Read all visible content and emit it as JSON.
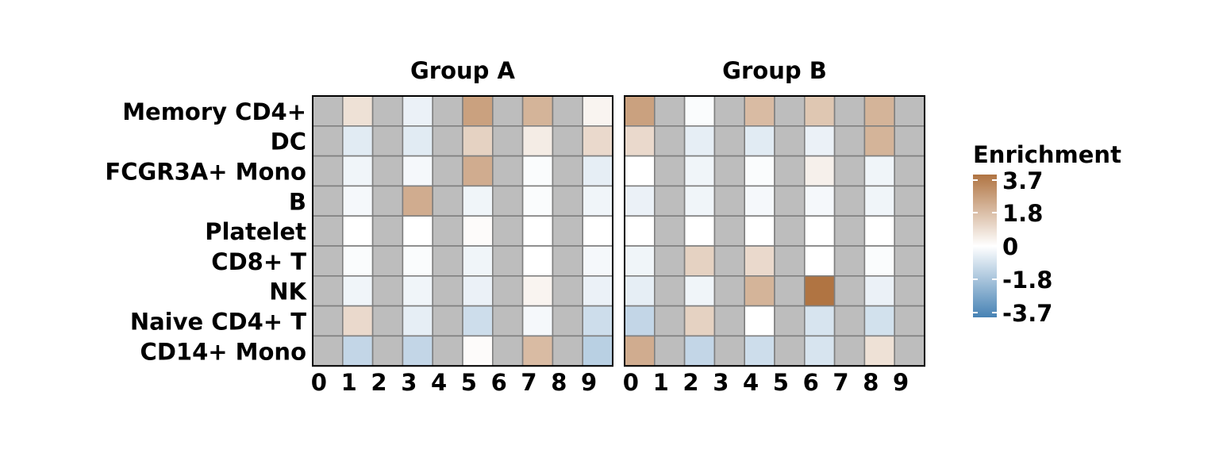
{
  "chart_data": {
    "type": "heatmap",
    "title": "",
    "xlabel": "",
    "ylabel": "",
    "rows": [
      "Memory CD4+",
      "DC",
      "FCGR3A+ Mono",
      "B",
      "Platelet",
      "CD8+ T",
      "NK",
      "Naive CD4+ T",
      "CD14+ Mono"
    ],
    "columns": [
      "0",
      "1",
      "2",
      "3",
      "4",
      "5",
      "6",
      "7",
      "8",
      "9"
    ],
    "panels": [
      {
        "name": "Group A",
        "values": [
          [
            null,
            0.8,
            null,
            -0.4,
            null,
            2.5,
            null,
            2.0,
            null,
            0.3
          ],
          [
            null,
            -0.6,
            null,
            -0.6,
            null,
            1.2,
            null,
            0.5,
            null,
            1.0
          ],
          [
            null,
            -0.3,
            null,
            -0.2,
            null,
            2.2,
            null,
            -0.1,
            null,
            -0.5
          ],
          [
            null,
            -0.2,
            null,
            2.2,
            null,
            -0.3,
            null,
            -0.1,
            null,
            -0.3
          ],
          [
            null,
            0.0,
            null,
            0.0,
            null,
            0.1,
            null,
            0.0,
            null,
            0.0
          ],
          [
            null,
            -0.1,
            null,
            -0.1,
            null,
            -0.3,
            null,
            0.0,
            null,
            -0.2
          ],
          [
            null,
            -0.3,
            null,
            -0.3,
            null,
            -0.4,
            null,
            0.3,
            null,
            -0.4
          ],
          [
            null,
            1.0,
            null,
            -0.5,
            null,
            -1.0,
            null,
            -0.2,
            null,
            -1.0
          ],
          [
            null,
            -1.2,
            null,
            -1.2,
            null,
            0.1,
            null,
            1.8,
            null,
            -1.4
          ]
        ]
      },
      {
        "name": "Group B",
        "values": [
          [
            2.5,
            null,
            -0.1,
            null,
            1.8,
            null,
            1.5,
            null,
            2.0,
            null
          ],
          [
            1.0,
            null,
            -0.5,
            null,
            -0.6,
            null,
            -0.4,
            null,
            2.0,
            null
          ],
          [
            0.0,
            null,
            -0.3,
            null,
            -0.1,
            null,
            0.4,
            null,
            -0.3,
            null
          ],
          [
            -0.4,
            null,
            -0.3,
            null,
            -0.2,
            null,
            -0.2,
            null,
            -0.3,
            null
          ],
          [
            0.0,
            null,
            0.0,
            null,
            0.0,
            null,
            0.0,
            null,
            0.0,
            null
          ],
          [
            -0.3,
            null,
            1.2,
            null,
            1.0,
            null,
            0.0,
            null,
            -0.1,
            null
          ],
          [
            -0.5,
            null,
            -0.3,
            null,
            2.0,
            null,
            3.7,
            null,
            -0.4,
            null
          ],
          [
            -1.2,
            null,
            1.2,
            null,
            0.0,
            null,
            -0.8,
            null,
            -0.9,
            null
          ],
          [
            2.2,
            null,
            -1.2,
            null,
            -1.0,
            null,
            -0.8,
            null,
            0.8,
            null
          ]
        ]
      }
    ],
    "na_color": "#bdbdbd",
    "colorbar": {
      "title": "Enrichment",
      "min": -3.7,
      "max": 3.7,
      "ticks": [
        3.7,
        1.8,
        0,
        -1.8,
        -3.7
      ],
      "tick_labels": [
        "3.7",
        "1.8",
        "0",
        "-1.8",
        "-3.7"
      ],
      "colors": {
        "low": "#4682b4",
        "mid": "#ffffff",
        "high": "#b07442"
      },
      "position": "right"
    }
  }
}
